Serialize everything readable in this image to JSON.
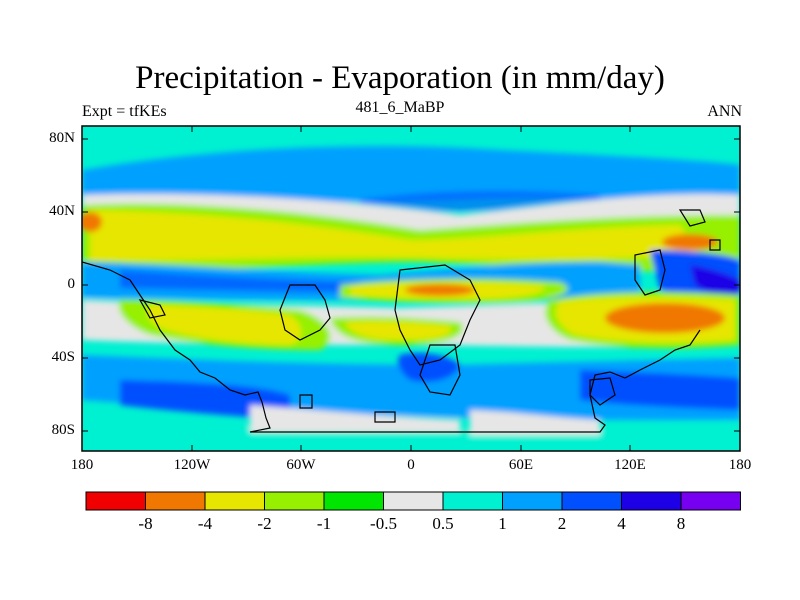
{
  "map": {
    "title": "Precipitation - Evaporation (in mm/day)",
    "left_label": "Expt = tfKEs",
    "center_label": "481_6_MaBP",
    "right_label": "ANN",
    "lat_ticks": [
      "80N",
      "40N",
      "0",
      "40S",
      "80S"
    ],
    "lon_ticks": [
      "180",
      "120W",
      "60W",
      "0",
      "60E",
      "120E",
      "180"
    ]
  },
  "colorbar": {
    "colors": [
      "#f00000",
      "#f07800",
      "#e6e600",
      "#96f000",
      "#00e600",
      "#e6e6e6",
      "#00f0d2",
      "#00a0ff",
      "#0050ff",
      "#1e00e6",
      "#7800f0"
    ],
    "labels": [
      "-8",
      "-4",
      "-2",
      "-1",
      "-0.5",
      "0.5",
      "1",
      "2",
      "4",
      "8"
    ]
  }
}
